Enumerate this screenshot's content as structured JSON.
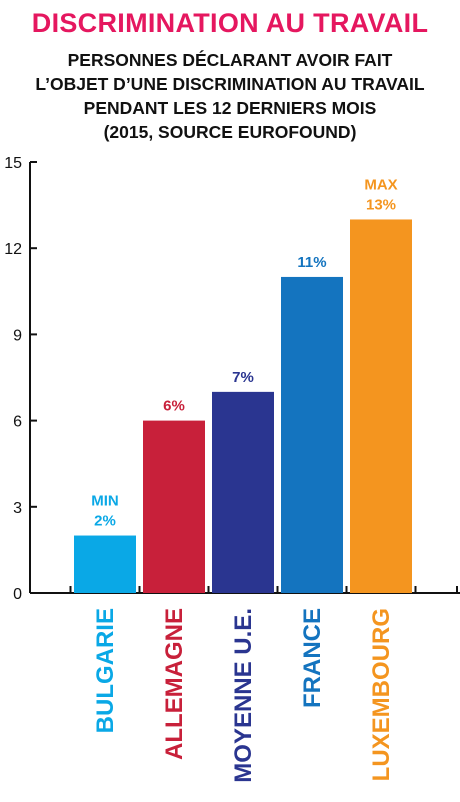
{
  "title": "DISCRIMINATION AU TRAVAIL",
  "subtitle_lines": [
    "PERSONNES DÉCLARANT AVOIR FAIT",
    "L’OBJET D’UNE DISCRIMINATION AU TRAVAIL",
    "PENDANT LES 12 DERNIERS MOIS",
    "(2015, SOURCE EUROFOUND)"
  ],
  "chart_data": {
    "type": "bar",
    "categories": [
      "BULGARIE",
      "ALLEMAGNE",
      "MOYENNE U.E.",
      "FRANCE",
      "LUXEMBOURG"
    ],
    "values": [
      2,
      6,
      7,
      11,
      13
    ],
    "value_labels": [
      "2%",
      "6%",
      "7%",
      "11%",
      "13%"
    ],
    "extra_labels": [
      "MIN",
      "",
      "",
      "",
      "MAX"
    ],
    "colors": [
      "#0aa8e6",
      "#c8203a",
      "#2a3590",
      "#1474bf",
      "#f4951f"
    ],
    "ylim": [
      0,
      15
    ],
    "yticks": [
      0,
      3,
      6,
      9,
      12,
      15
    ],
    "grid": false
  }
}
